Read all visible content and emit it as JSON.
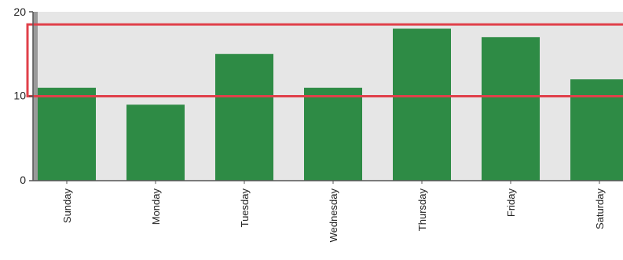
{
  "chart_data": {
    "type": "bar",
    "title": "",
    "xlabel": "",
    "ylabel": "",
    "categories": [
      "Sunday",
      "Monday",
      "Tuesday",
      "Wednesday",
      "Thursday",
      "Friday",
      "Saturday"
    ],
    "values": [
      11,
      9,
      15,
      11,
      18,
      17,
      12
    ],
    "ylim": [
      0,
      20
    ],
    "y_ticks": [
      0,
      10,
      20
    ],
    "grid": false,
    "legend": "none",
    "highlight_band": {
      "from": 10,
      "to": 18.5
    },
    "colors": {
      "bar": "#2e8b45",
      "plot_background": "#e6e6e6",
      "band_outline": "#e0404a",
      "axis": "#555555",
      "text": "#222222"
    }
  }
}
